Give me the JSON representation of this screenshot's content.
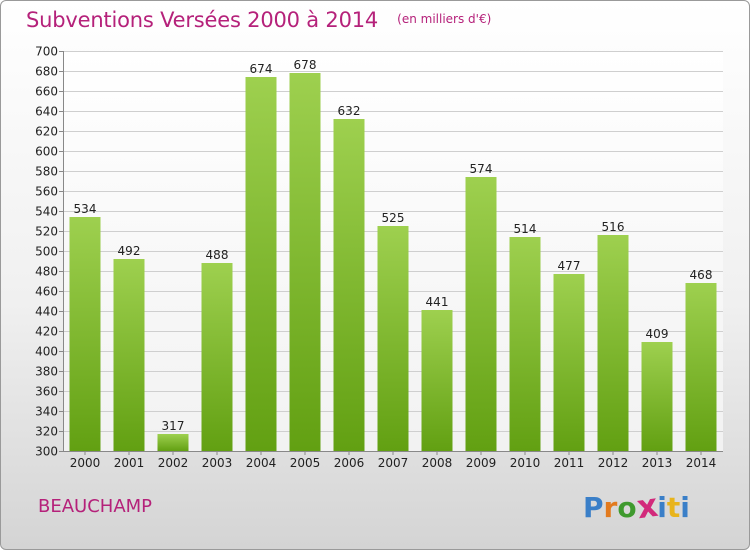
{
  "chart_data": {
    "type": "bar",
    "title": "Subventions Versées 2000 à 2014",
    "subtitle": "(en milliers d'€)",
    "categories": [
      "2000",
      "2001",
      "2002",
      "2003",
      "2004",
      "2005",
      "2006",
      "2007",
      "2008",
      "2009",
      "2010",
      "2011",
      "2012",
      "2013",
      "2014"
    ],
    "values": [
      534,
      492,
      317,
      488,
      674,
      678,
      632,
      525,
      441,
      574,
      514,
      477,
      516,
      409,
      468
    ],
    "ylim": [
      300,
      700
    ],
    "ytick_step": 20,
    "grid": true,
    "xlabel": "",
    "ylabel": "",
    "bar_color_top": "#9ed04f",
    "bar_color_bottom": "#62a012"
  },
  "footer": {
    "commune": "BEAUCHAMP",
    "logo_text": "Proxiti"
  },
  "colors": {
    "title": "#b5217a",
    "logo_letters": [
      "#3a7fc8",
      "#e27a1e",
      "#3f9a2e",
      "#d22a7b",
      "#3a7fc8",
      "#e8b41c",
      "#3a7fc8"
    ]
  }
}
